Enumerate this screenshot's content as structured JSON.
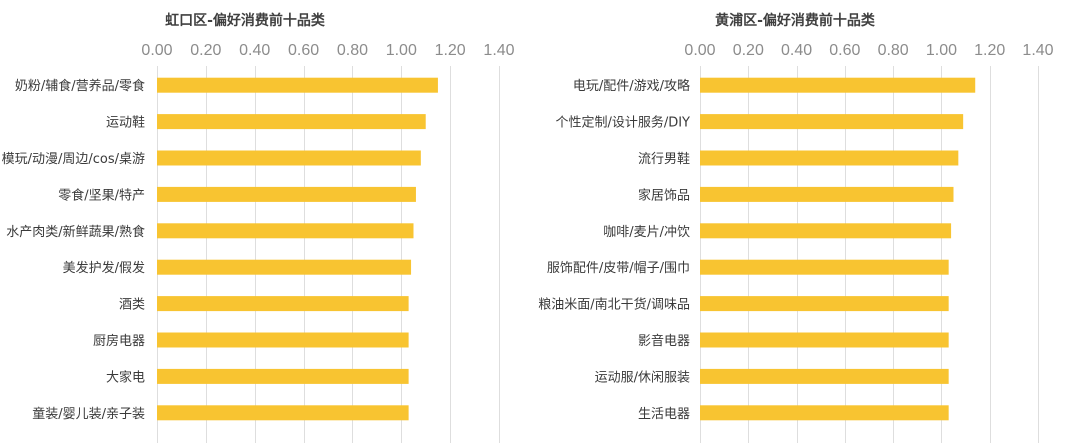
{
  "chart_data": [
    {
      "type": "bar",
      "orientation": "horizontal",
      "title": "虹口区-偏好消费前十品类",
      "categories": [
        "奶粉/辅食/营养品/零食",
        "运动鞋",
        "模玩/动漫/周边/cos/桌游",
        "零食/坚果/特产",
        "水产肉类/新鲜蔬果/熟食",
        "美发护发/假发",
        "酒类",
        "厨房电器",
        "大家电",
        "童装/婴儿装/亲子装"
      ],
      "values": [
        1.15,
        1.1,
        1.08,
        1.06,
        1.05,
        1.04,
        1.03,
        1.03,
        1.03,
        1.03
      ],
      "xlim": [
        0,
        1.4
      ],
      "ticks": [
        "0.00",
        "0.20",
        "0.40",
        "0.60",
        "0.80",
        "1.00",
        "1.20",
        "1.40"
      ],
      "tick_values": [
        0,
        0.2,
        0.4,
        0.6,
        0.8,
        1.0,
        1.2,
        1.4
      ],
      "axis_position": "top",
      "grid": true,
      "bar_color": "#F8C431",
      "grid_color": "#DEDEDE"
    },
    {
      "type": "bar",
      "orientation": "horizontal",
      "title": "黄浦区-偏好消费前十品类",
      "categories": [
        "电玩/配件/游戏/攻略",
        "个性定制/设计服务/DIY",
        "流行男鞋",
        "家居饰品",
        "咖啡/麦片/冲饮",
        "服饰配件/皮带/帽子/围巾",
        "粮油米面/南北干货/调味品",
        "影音电器",
        "运动服/休闲服装",
        "生活电器"
      ],
      "values": [
        1.14,
        1.09,
        1.07,
        1.05,
        1.04,
        1.03,
        1.03,
        1.03,
        1.03,
        1.03
      ],
      "xlim": [
        0,
        1.4
      ],
      "ticks": [
        "0.00",
        "0.20",
        "0.40",
        "0.60",
        "0.80",
        "1.00",
        "1.20",
        "1.40"
      ],
      "tick_values": [
        0,
        0.2,
        0.4,
        0.6,
        0.8,
        1.0,
        1.2,
        1.4
      ],
      "axis_position": "top",
      "grid": true,
      "bar_color": "#F8C431",
      "grid_color": "#DEDEDE"
    }
  ]
}
